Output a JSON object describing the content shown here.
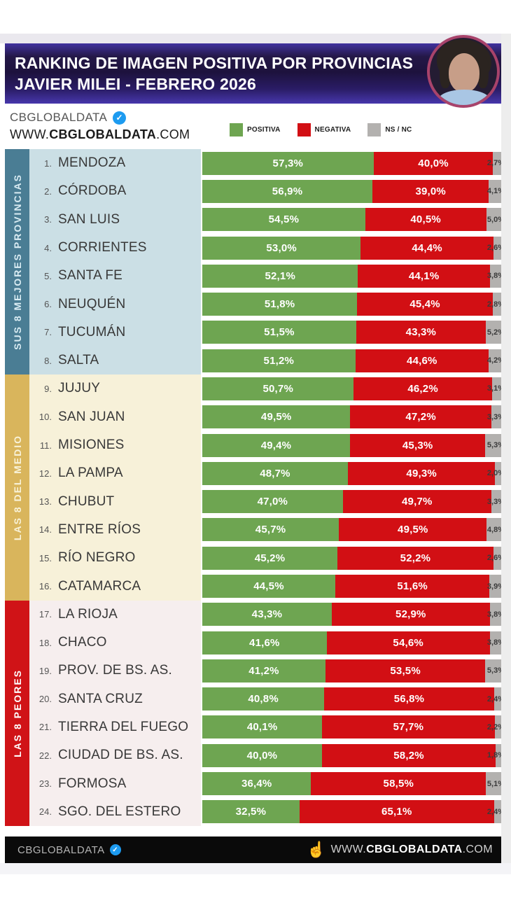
{
  "header": {
    "title_line1": "RANKING DE IMAGEN POSITIVA POR PROVINCIAS",
    "title_line2": "JAVIER MILEI - FEBRERO 2026"
  },
  "brand": {
    "name": "CBGLOBALDATA",
    "url_www": "WWW.",
    "url_name": "CBGLOBALDATA",
    "url_tld": ".COM"
  },
  "icons": {
    "verified_check": "✓",
    "hand_pointer": "☝"
  },
  "legend": {
    "items": [
      {
        "label": "POSITIVA",
        "color": "#6ea551"
      },
      {
        "label": "NEGATIVA",
        "color": "#d20f14"
      },
      {
        "label": "NS / NC",
        "color": "#b3b1af"
      }
    ]
  },
  "chart_data": {
    "type": "bar",
    "stacked": true,
    "orientation": "horizontal",
    "unit": "percent",
    "value_format": "comma-decimal",
    "x_range": [
      0,
      100
    ],
    "categories": [
      "MENDOZA",
      "CÓRDOBA",
      "SAN LUIS",
      "CORRIENTES",
      "SANTA FE",
      "NEUQUÉN",
      "TUCUMÁN",
      "SALTA",
      "JUJUY",
      "SAN JUAN",
      "MISIONES",
      "LA PAMPA",
      "CHUBUT",
      "ENTRE RÍOS",
      "RÍO NEGRO",
      "CATAMARCA",
      "LA RIOJA",
      "CHACO",
      "PROV. DE BS. AS.",
      "SANTA CRUZ",
      "TIERRA DEL FUEGO",
      "CIUDAD DE BS. AS.",
      "FORMOSA",
      "SGO. DEL ESTERO"
    ],
    "series": [
      {
        "name": "POSITIVA",
        "color": "#6ea551",
        "values": [
          57.3,
          56.9,
          54.5,
          53.0,
          52.1,
          51.8,
          51.5,
          51.2,
          50.7,
          49.5,
          49.4,
          48.7,
          47.0,
          45.7,
          45.2,
          44.5,
          43.3,
          41.6,
          41.2,
          40.8,
          40.1,
          40.0,
          36.4,
          32.5
        ]
      },
      {
        "name": "NEGATIVA",
        "color": "#d20f14",
        "values": [
          40.0,
          39.0,
          40.5,
          44.4,
          44.1,
          45.4,
          43.3,
          44.6,
          46.2,
          47.2,
          45.3,
          49.3,
          49.7,
          49.5,
          52.2,
          51.6,
          52.9,
          54.6,
          53.5,
          56.8,
          57.7,
          58.2,
          58.5,
          65.1
        ]
      },
      {
        "name": "NS / NC",
        "color": "#b3b1af",
        "values": [
          2.7,
          4.1,
          5.0,
          2.6,
          3.8,
          2.8,
          5.2,
          4.2,
          3.1,
          3.3,
          5.3,
          2.0,
          3.3,
          4.8,
          2.6,
          3.9,
          3.8,
          3.8,
          5.3,
          2.4,
          2.2,
          1.8,
          5.1,
          2.4
        ]
      }
    ],
    "groups": [
      {
        "label": "SUS 8 MEJORES PROVINCIAS",
        "start": 1,
        "end": 8,
        "strip_color": "#4a7d94",
        "zone_color": "#cbdfe5",
        "label_color": "#d9ecf3"
      },
      {
        "label": "LAS 8 DEL MEDIO",
        "start": 9,
        "end": 16,
        "strip_color": "#d9b55c",
        "zone_color": "#f7f1d9",
        "label_color": "#f8f2d8"
      },
      {
        "label": "LAS 8 PEORES",
        "start": 17,
        "end": 24,
        "strip_color": "#d01317",
        "zone_color": "#f6eeee",
        "label_color": "#ffffff"
      }
    ]
  },
  "footer": {
    "brand": "CBGLOBALDATA",
    "url_www": "WWW.",
    "url_name": "CBGLOBALDATA",
    "url_tld": ".COM"
  }
}
